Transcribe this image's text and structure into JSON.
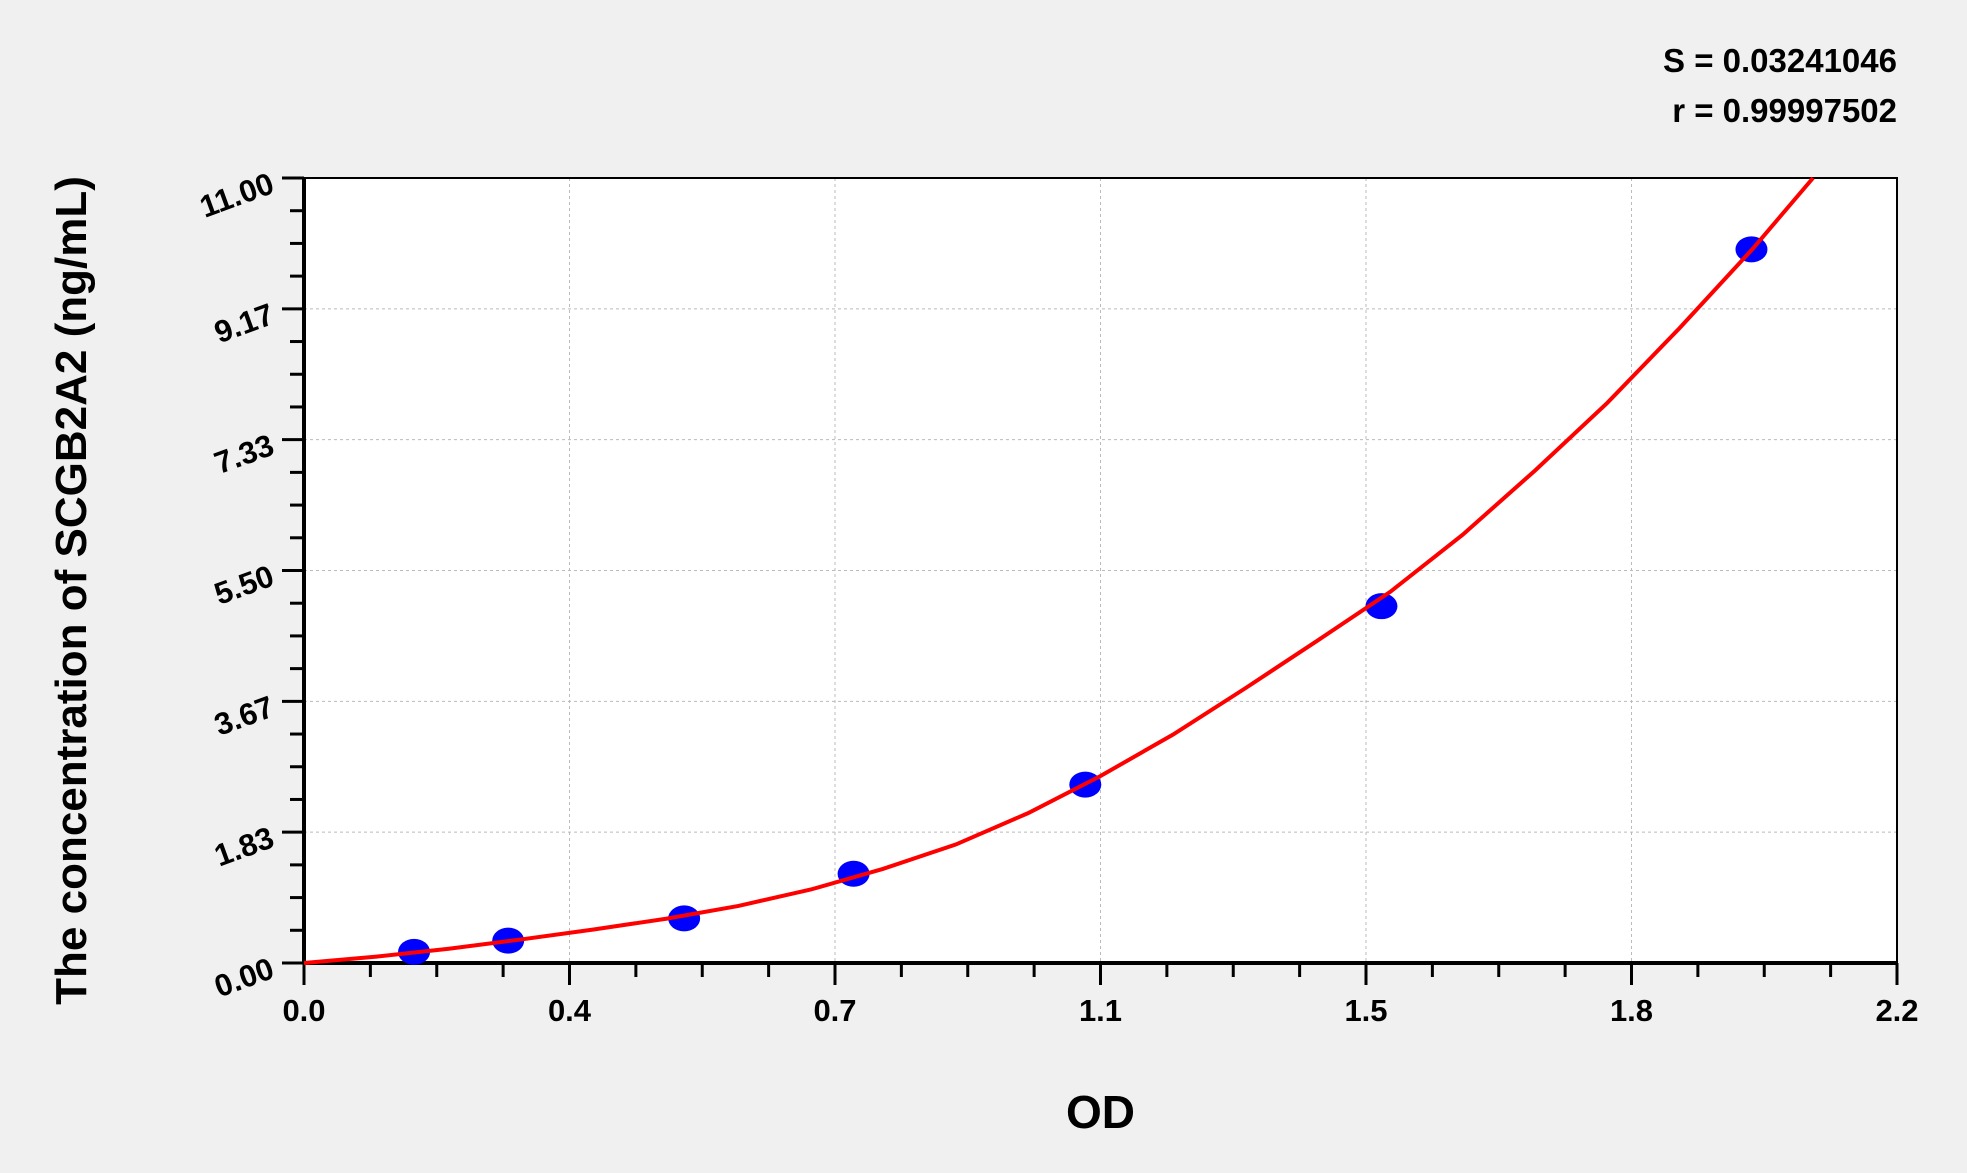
{
  "chart_data": {
    "type": "scatter",
    "xlabel": "OD",
    "ylabel": "The concentration of SCGB2A2 (ng/mL)",
    "xlim": [
      0,
      2.2
    ],
    "ylim": [
      0,
      11
    ],
    "x_ticks": [
      "0.0",
      "0.4",
      "0.7",
      "1.1",
      "1.5",
      "1.8",
      "2.2"
    ],
    "y_ticks": [
      "0.00",
      "1.83",
      "3.67",
      "5.50",
      "7.33",
      "9.17",
      "11.00"
    ],
    "grid": true,
    "points": {
      "x": [
        0.152,
        0.282,
        0.525,
        0.759,
        1.079,
        1.488,
        1.999
      ],
      "y": [
        0.156,
        0.313,
        0.625,
        1.25,
        2.5,
        5,
        10
      ],
      "color": "#0000ff"
    },
    "fit_curve": {
      "x": [
        0,
        0.1,
        0.2,
        0.3,
        0.4,
        0.5,
        0.6,
        0.7,
        0.8,
        0.9,
        1.0,
        1.1,
        1.2,
        1.3,
        1.4,
        1.5,
        1.6,
        1.7,
        1.8,
        1.9,
        2.0,
        2.084
      ],
      "y": [
        0,
        0.09,
        0.2,
        0.33,
        0.47,
        0.62,
        0.8,
        1.03,
        1.32,
        1.66,
        2.1,
        2.62,
        3.2,
        3.85,
        4.52,
        5.2,
        6.0,
        6.9,
        7.85,
        8.9,
        10.0,
        11.0
      ],
      "color": "#ff0000"
    },
    "annotations": {
      "s": "S = 0.03241046",
      "r": "r = 0.99997502"
    }
  }
}
